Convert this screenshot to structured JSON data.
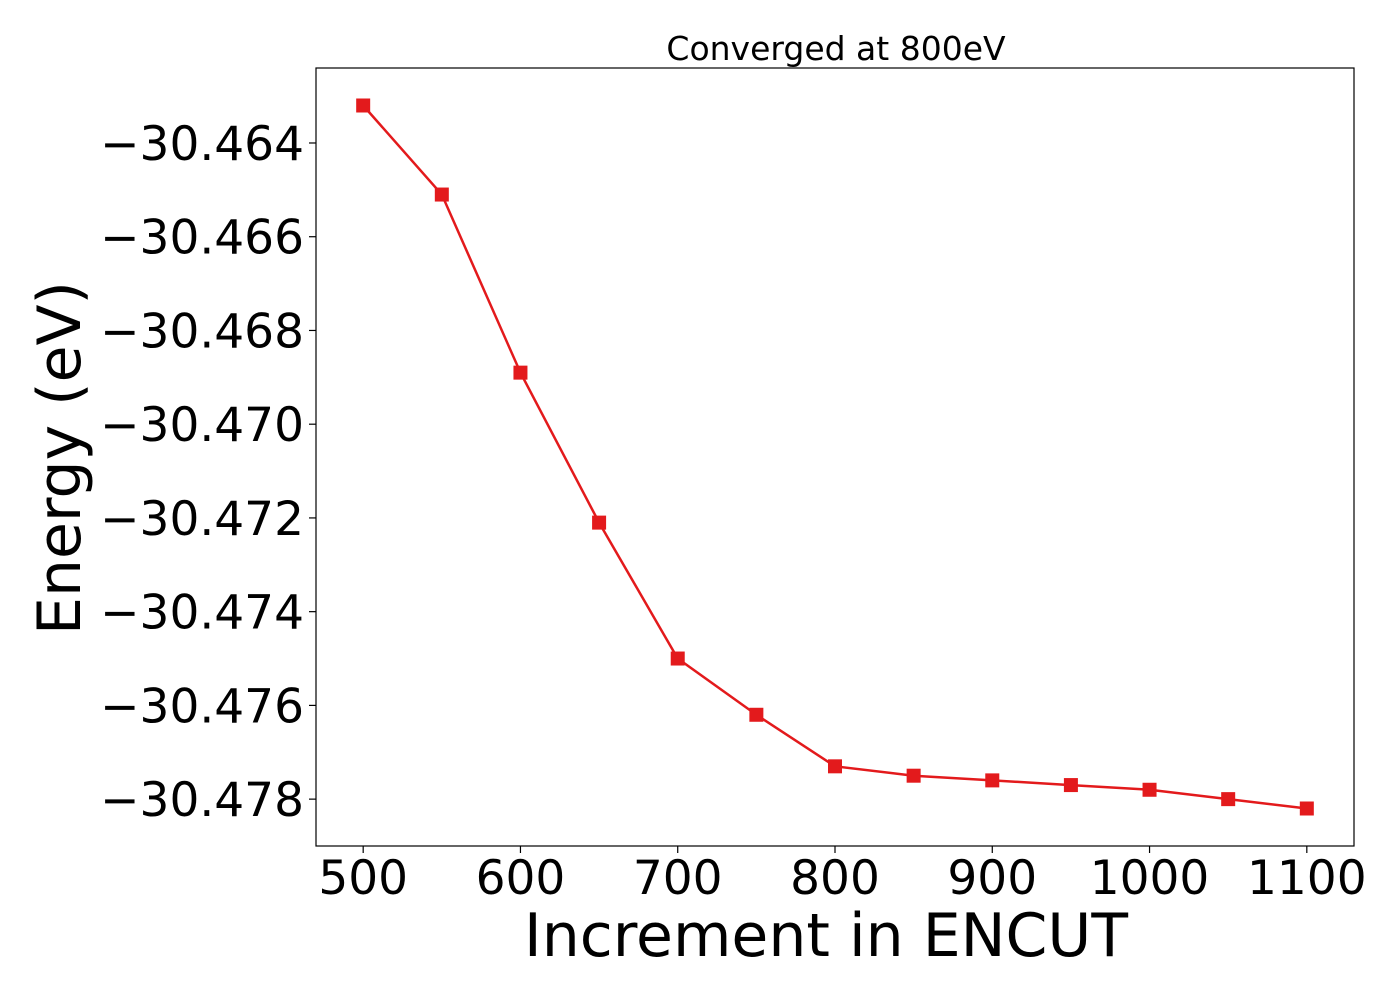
{
  "chart_data": {
    "type": "line",
    "title": "Converged at 800eV",
    "xlabel": "Increment in ENCUT",
    "ylabel": "Energy (eV)",
    "xlim": [
      470,
      1130
    ],
    "ylim": [
      -30.479,
      -30.4624
    ],
    "grid": false,
    "legend": "none",
    "x_ticks": [
      500,
      600,
      700,
      800,
      900,
      1000,
      1100
    ],
    "x_tick_labels": [
      "500",
      "600",
      "700",
      "800",
      "900",
      "1000",
      "1100"
    ],
    "y_ticks": [
      -30.464,
      -30.466,
      -30.468,
      -30.47,
      -30.472,
      -30.474,
      -30.476,
      -30.478
    ],
    "y_tick_labels": [
      "−30.464",
      "−30.466",
      "−30.468",
      "−30.470",
      "−30.472",
      "−30.474",
      "−30.476",
      "−30.478"
    ],
    "series": [
      {
        "color": "#e31a1c",
        "marker": "square",
        "x": [
          500,
          550,
          600,
          650,
          700,
          750,
          800,
          850,
          900,
          950,
          1000,
          1050,
          1100
        ],
        "y": [
          -30.4632,
          -30.4651,
          -30.4689,
          -30.4721,
          -30.475,
          -30.4762,
          -30.4773,
          -30.4775,
          -30.4776,
          -30.4777,
          -30.4778,
          -30.478,
          -30.4782
        ]
      }
    ]
  }
}
